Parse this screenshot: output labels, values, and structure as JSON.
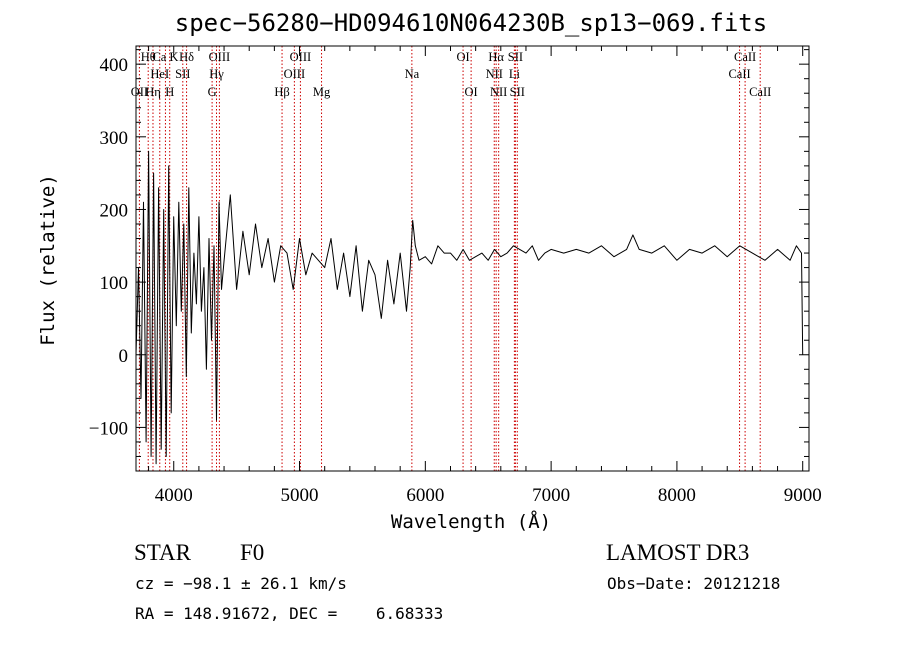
{
  "chart_data": {
    "type": "line",
    "title": "spec−56280−HD094610N064230B_sp13−069.fits",
    "xlabel": "Wavelength (Å)",
    "ylabel": "Flux (relative)",
    "xlim": [
      3700,
      9050
    ],
    "ylim": [
      -160,
      425
    ],
    "x_ticks": [
      {
        "value": 4000,
        "label": "4000"
      },
      {
        "value": 5000,
        "label": "5000"
      },
      {
        "value": 6000,
        "label": "6000"
      },
      {
        "value": 7000,
        "label": "7000"
      },
      {
        "value": 8000,
        "label": "8000"
      },
      {
        "value": 9000,
        "label": "9000"
      }
    ],
    "x_minor_step": 200,
    "y_ticks": [
      {
        "value": -100,
        "label": "−100"
      },
      {
        "value": 0,
        "label": "0"
      },
      {
        "value": 100,
        "label": "100"
      },
      {
        "value": 200,
        "label": "200"
      },
      {
        "value": 300,
        "label": "300"
      },
      {
        "value": 400,
        "label": "400"
      }
    ],
    "y_minor_step": 20,
    "series": [
      {
        "name": "flux",
        "x": [
          3700,
          3720,
          3740,
          3760,
          3780,
          3800,
          3820,
          3840,
          3860,
          3880,
          3900,
          3920,
          3940,
          3960,
          3980,
          4000,
          4020,
          4040,
          4060,
          4080,
          4100,
          4120,
          4140,
          4160,
          4180,
          4200,
          4220,
          4240,
          4260,
          4280,
          4300,
          4320,
          4340,
          4360,
          4380,
          4400,
          4450,
          4500,
          4550,
          4600,
          4650,
          4700,
          4750,
          4800,
          4850,
          4900,
          4950,
          5000,
          5050,
          5100,
          5150,
          5200,
          5250,
          5300,
          5350,
          5400,
          5450,
          5500,
          5550,
          5600,
          5650,
          5700,
          5750,
          5800,
          5850,
          5880,
          5900,
          5920,
          5950,
          6000,
          6050,
          6100,
          6150,
          6200,
          6250,
          6300,
          6350,
          6400,
          6450,
          6500,
          6550,
          6600,
          6650,
          6700,
          6750,
          6800,
          6850,
          6900,
          6950,
          7000,
          7100,
          7200,
          7300,
          7400,
          7500,
          7600,
          7650,
          7700,
          7800,
          7900,
          8000,
          8100,
          8200,
          8300,
          8400,
          8500,
          8600,
          8700,
          8800,
          8900,
          8950,
          8990,
          9000
        ],
        "y": [
          0,
          120,
          -60,
          210,
          -120,
          280,
          -140,
          250,
          -150,
          230,
          -130,
          200,
          -140,
          260,
          -80,
          190,
          40,
          210,
          60,
          180,
          -30,
          230,
          30,
          140,
          70,
          190,
          60,
          120,
          -20,
          160,
          20,
          150,
          -90,
          210,
          90,
          130,
          220,
          90,
          170,
          110,
          180,
          120,
          160,
          100,
          150,
          140,
          90,
          160,
          110,
          140,
          130,
          120,
          160,
          90,
          140,
          80,
          150,
          60,
          130,
          110,
          50,
          130,
          70,
          140,
          60,
          120,
          185,
          150,
          130,
          135,
          125,
          150,
          140,
          140,
          130,
          145,
          130,
          135,
          140,
          130,
          145,
          135,
          140,
          150,
          145,
          140,
          150,
          130,
          140,
          145,
          140,
          145,
          140,
          150,
          135,
          145,
          165,
          145,
          140,
          150,
          130,
          145,
          140,
          150,
          135,
          150,
          140,
          130,
          145,
          130,
          150,
          140,
          0
        ]
      }
    ],
    "spectral_lines": [
      {
        "name": "OII",
        "wavelength": 3727,
        "row": 2
      },
      {
        "name": "Hθ",
        "wavelength": 3797,
        "row": 0
      },
      {
        "name": "Ca K",
        "wavelength": 3934,
        "row": 0
      },
      {
        "name": "HeI",
        "wavelength": 3889,
        "row": 1
      },
      {
        "name": "Hη",
        "wavelength": 3835,
        "row": 2
      },
      {
        "name": "H",
        "wavelength": 3968,
        "row": 2
      },
      {
        "name": "Hδ",
        "wavelength": 4102,
        "row": 0
      },
      {
        "name": "SII",
        "wavelength": 4072,
        "row": 1
      },
      {
        "name": "OIII",
        "wavelength": 4363,
        "row": 0
      },
      {
        "name": "Hγ",
        "wavelength": 4340,
        "row": 1
      },
      {
        "name": "G",
        "wavelength": 4305,
        "row": 2
      },
      {
        "name": "Hβ",
        "wavelength": 4861,
        "row": 2
      },
      {
        "name": "OIII",
        "wavelength": 5007,
        "row": 0
      },
      {
        "name": "OIII",
        "wavelength": 4959,
        "row": 1
      },
      {
        "name": "Mg",
        "wavelength": 5175,
        "row": 2
      },
      {
        "name": "Na",
        "wavelength": 5893,
        "row": 1
      },
      {
        "name": "OI",
        "wavelength": 6300,
        "row": 0
      },
      {
        "name": "OI",
        "wavelength": 6364,
        "row": 2
      },
      {
        "name": "Hα",
        "wavelength": 6563,
        "row": 0
      },
      {
        "name": "NII",
        "wavelength": 6548,
        "row": 1
      },
      {
        "name": "NII",
        "wavelength": 6583,
        "row": 2
      },
      {
        "name": "SII",
        "wavelength": 6716,
        "row": 0
      },
      {
        "name": "Li",
        "wavelength": 6708,
        "row": 1
      },
      {
        "name": "SII",
        "wavelength": 6731,
        "row": 2
      },
      {
        "name": "CaII",
        "wavelength": 8542,
        "row": 0
      },
      {
        "name": "CaII",
        "wavelength": 8498,
        "row": 1
      },
      {
        "name": "CaII",
        "wavelength": 8662,
        "row": 2
      }
    ]
  },
  "info": {
    "object_class": "STAR",
    "subclass": "F0",
    "survey": "LAMOST DR3",
    "redshift_text": "cz = −98.1 ± 26.1 km/s",
    "obs_date": "Obs−Date: 20121218",
    "coords": "RA = 148.91672, DEC =    6.68333"
  },
  "colors": {
    "spectrum": "#000000",
    "line_marker": "#cc0000",
    "axes": "#000000",
    "background": "#ffffff"
  }
}
